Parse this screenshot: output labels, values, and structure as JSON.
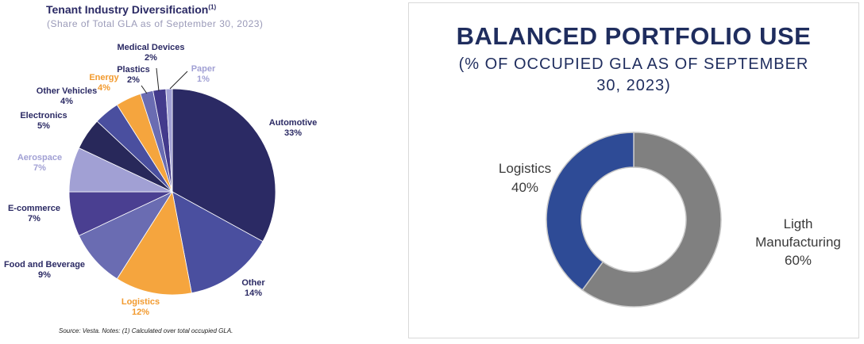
{
  "chart_data": [
    {
      "type": "pie",
      "title": "Tenant Industry Diversification",
      "title_footnote": "(1)",
      "subtitle": "(Share of Total GLA as of September 30, 2023)",
      "unit": "%",
      "slices": [
        {
          "label": "Automotive",
          "value": 33,
          "value_text": "33%",
          "color": "#2b2a64",
          "label_color": "#2b2a64"
        },
        {
          "label": "Other",
          "value": 14,
          "value_text": "14%",
          "color": "#4a4f9f",
          "label_color": "#2b2a64"
        },
        {
          "label": "Logistics",
          "value": 12,
          "value_text": "12%",
          "color": "#f5a53e",
          "label_color": "#f29a2e"
        },
        {
          "label": "Food and Beverage",
          "value": 9,
          "value_text": "9%",
          "color": "#6a6cb2",
          "label_color": "#2b2a64"
        },
        {
          "label": "E-commerce",
          "value": 7,
          "value_text": "7%",
          "color": "#4a3f91",
          "label_color": "#2b2a64"
        },
        {
          "label": "Aerospace",
          "value": 7,
          "value_text": "7%",
          "color": "#a1a0d4",
          "label_color": "#a1a0d4"
        },
        {
          "label": "Electronics",
          "value": 5,
          "value_text": "5%",
          "color": "#28285a",
          "label_color": "#2b2a64"
        },
        {
          "label": "Other Vehicles",
          "value": 4,
          "value_text": "4%",
          "color": "#4a4f9f",
          "label_color": "#2b2a64"
        },
        {
          "label": "Energy",
          "value": 4,
          "value_text": "4%",
          "color": "#f5a53e",
          "label_color": "#f29a2e"
        },
        {
          "label": "Plastics",
          "value": 2,
          "value_text": "2%",
          "color": "#6a6cb2",
          "label_color": "#2b2a64"
        },
        {
          "label": "Medical Devices",
          "value": 2,
          "value_text": "2%",
          "color": "#433a8c",
          "label_color": "#2b2a64"
        },
        {
          "label": "Paper",
          "value": 1,
          "value_text": "1%",
          "color": "#a1a0d4",
          "label_color": "#a1a0d4"
        }
      ],
      "source_note": "Source: Vesta. Notes: (1) Calculated over total occupied GLA."
    },
    {
      "type": "donut",
      "title": "BALANCED PORTFOLIO USE",
      "subtitle_line1": "(% OF OCCUPIED GLA AS OF SEPTEMBER",
      "subtitle_line2": "30, 2023)",
      "unit": "%",
      "slices": [
        {
          "label": "Ligth Manufacturing",
          "label_line1": "Ligth",
          "label_line2": "Manufacturing",
          "value": 60,
          "value_text": "60%",
          "color": "#808080"
        },
        {
          "label": "Logistics",
          "label_line1": "Logistics",
          "value": 40,
          "value_text": "40%",
          "color": "#2e4b96"
        }
      ]
    }
  ]
}
